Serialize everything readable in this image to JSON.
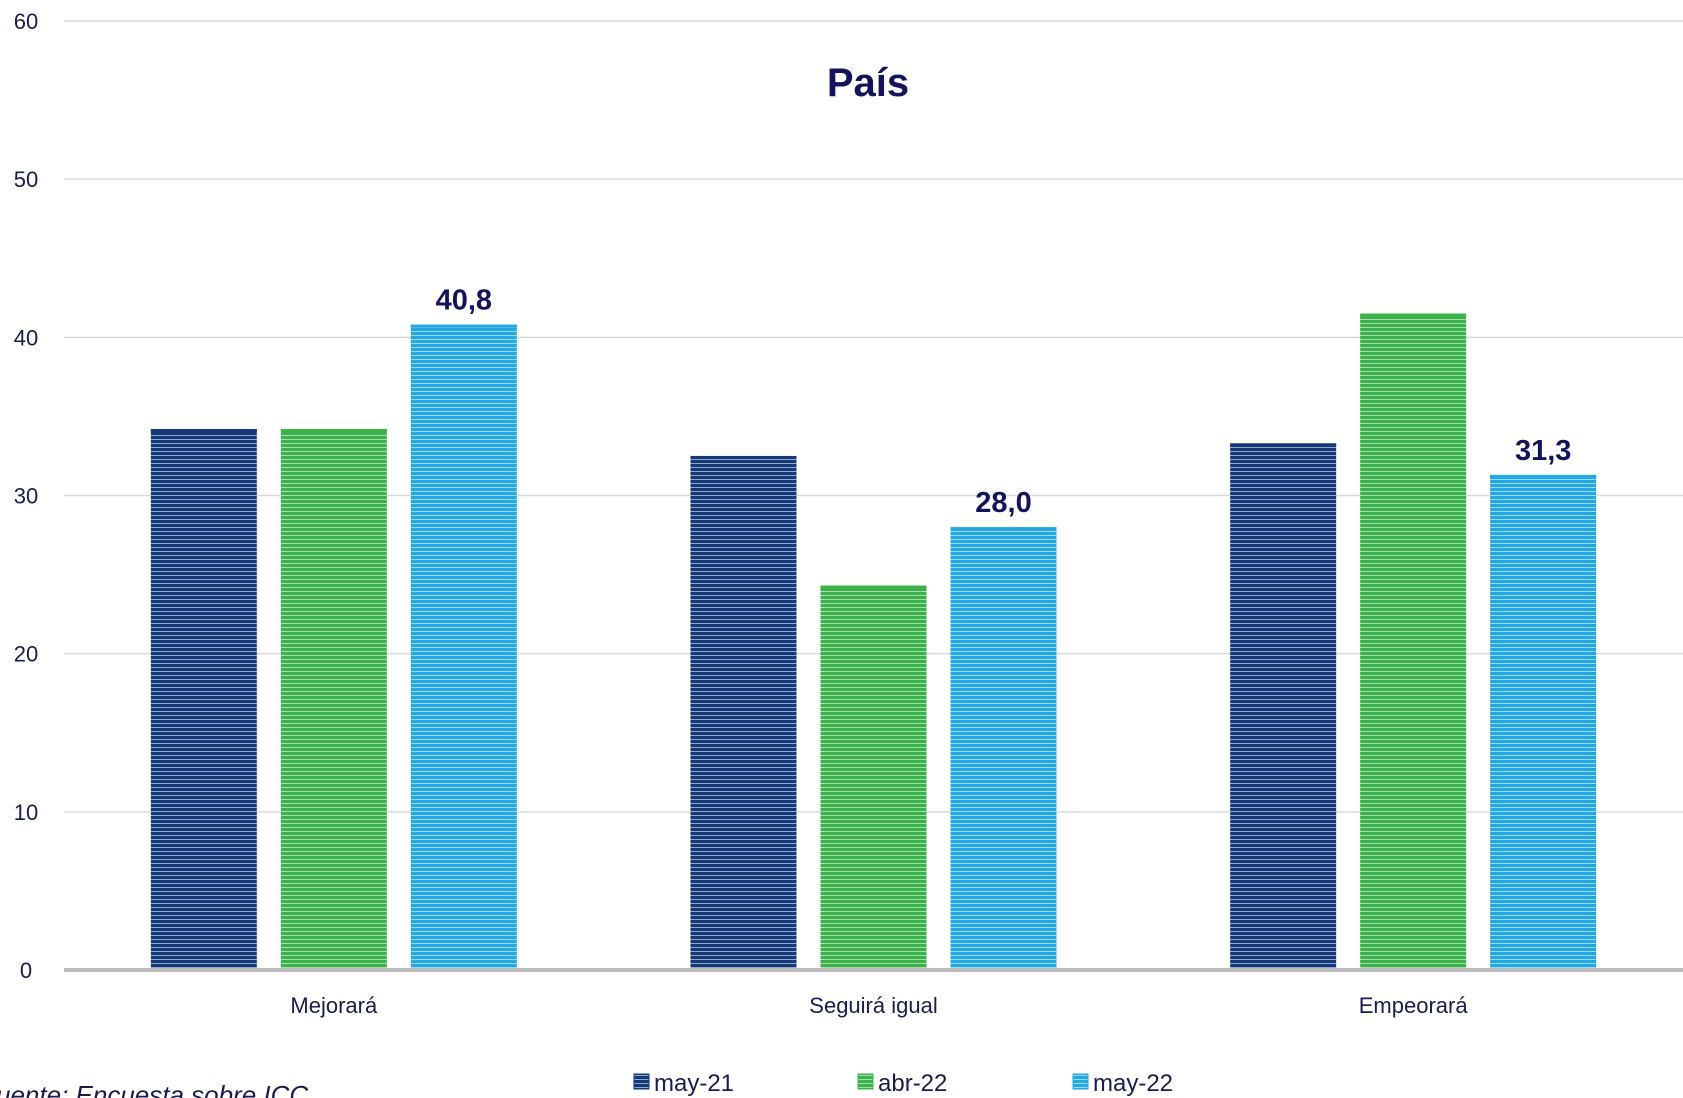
{
  "chart_data": {
    "type": "bar",
    "title": "País",
    "categories": [
      "Mejorará",
      "Seguirá igual",
      "Empeorará"
    ],
    "series": [
      {
        "name": "may-21",
        "values": [
          34.2,
          32.5,
          33.3
        ],
        "color": "#13397a"
      },
      {
        "name": "abr-22",
        "values": [
          34.2,
          24.3,
          41.5
        ],
        "color": "#3cb24a"
      },
      {
        "name": "may-22",
        "values": [
          40.8,
          28.0,
          31.3
        ],
        "color": "#22a9e1"
      }
    ],
    "data_labels": [
      {
        "series": "may-22",
        "category": "Mejorará",
        "text": "40,8"
      },
      {
        "series": "may-22",
        "category": "Seguirá igual",
        "text": "28,0"
      },
      {
        "series": "may-22",
        "category": "Empeorará",
        "text": "31,3"
      }
    ],
    "ylim": [
      0,
      60
    ],
    "yticks": [
      "0",
      "10",
      "20",
      "30",
      "40",
      "50",
      "60"
    ],
    "grid": true,
    "legend_position": "bottom",
    "source_text": "uente: Encuesta sobre ICC"
  }
}
